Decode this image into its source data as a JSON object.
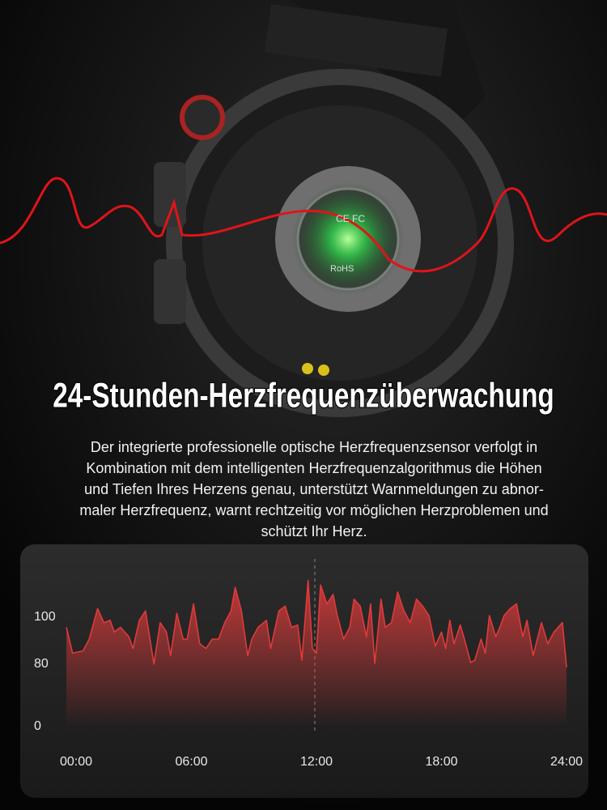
{
  "header": {
    "title": "24-Stunden-Herzfrequenzüberwachung",
    "description": [
      "Der integrierte professionelle optische Herzfrequenzsensor verfolgt in",
      "Kombination mit dem intelligenten Herzfrequenzalgorithmus die Höhen",
      "und Tiefen Ihres Herzens genau, unterstützt Warnmeldungen zu abnor-",
      "maler Herzfrequenz, warnt rechtzeitig vor möglichen Herzproblemen und",
      "schützt Ihr Herz."
    ]
  },
  "device_marks": [
    "CE FC",
    "RoHS"
  ],
  "chart_data": {
    "type": "area",
    "color": "#e03a3a",
    "x": [
      0,
      0.3,
      0.8,
      1.1,
      1.5,
      1.8,
      2.1,
      2.3,
      2.6,
      3.0,
      3.2,
      3.5,
      3.8,
      4.2,
      4.5,
      4.8,
      5.0,
      5.3,
      5.6,
      5.8,
      6.1,
      6.4,
      6.7,
      7.0,
      7.3,
      7.6,
      7.9,
      8.1,
      8.4,
      8.7,
      8.9,
      9.2,
      9.6,
      9.8,
      10.2,
      10.5,
      10.8,
      11.1,
      11.3,
      11.6,
      11.8,
      12.0,
      12.2,
      12.5,
      12.8,
      13.0,
      13.3,
      13.6,
      13.8,
      14.1,
      14.4,
      14.6,
      14.8,
      15.1,
      15.3,
      15.6,
      15.9,
      16.2,
      16.5,
      16.8,
      17.1,
      17.4,
      17.7,
      18.0,
      18.2,
      18.4,
      18.6,
      18.9,
      19.1,
      19.4,
      19.6,
      19.9,
      20.1,
      20.3,
      20.6,
      20.8,
      21.0,
      21.3,
      21.6,
      21.9,
      22.1,
      22.4,
      22.8,
      23.1,
      23.4,
      23.8,
      24.0
    ],
    "values": [
      95,
      84,
      85,
      90,
      103,
      97,
      98,
      93,
      95,
      91,
      86,
      98,
      102,
      78,
      97,
      93,
      83,
      101,
      90,
      90,
      105,
      88,
      86,
      90,
      90,
      97,
      102,
      112,
      102,
      83,
      90,
      95,
      98,
      86,
      102,
      104,
      95,
      96,
      81,
      115,
      86,
      84,
      113,
      105,
      109,
      100,
      90,
      95,
      107,
      104,
      91,
      105,
      79,
      107,
      95,
      97,
      110,
      102,
      97,
      107,
      104,
      100,
      87,
      93,
      86,
      98,
      88,
      96,
      90,
      80,
      81,
      90,
      84,
      100,
      91,
      95,
      100,
      103,
      105,
      91,
      98,
      83,
      97,
      88,
      93,
      97,
      74
    ],
    "xlim": [
      0,
      24
    ],
    "xticks": [
      {
        "value": 0,
        "label": "00:00"
      },
      {
        "value": 6,
        "label": "06:00"
      },
      {
        "value": 12,
        "label": "12:00"
      },
      {
        "value": 18,
        "label": "18:00"
      },
      {
        "value": 24,
        "label": "24:00"
      }
    ],
    "ylim": [
      0,
      120
    ],
    "yticks": [
      0,
      80,
      100
    ]
  }
}
